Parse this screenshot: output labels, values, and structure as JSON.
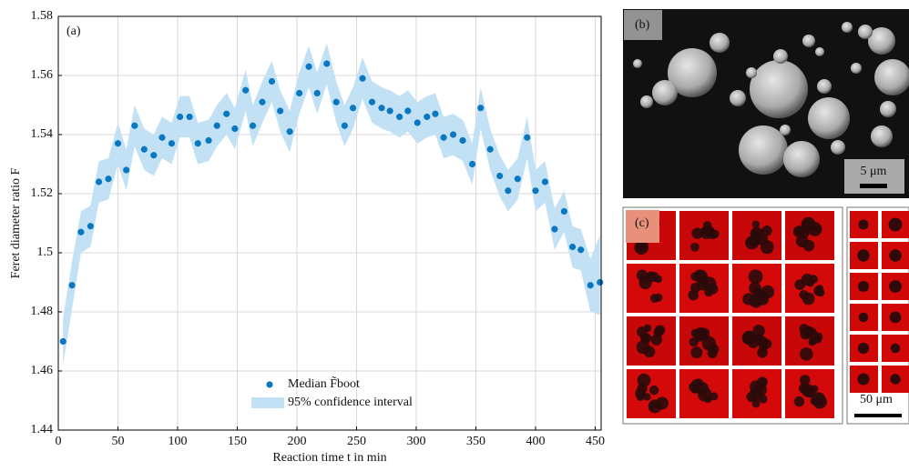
{
  "chart_data": {
    "type": "scatter",
    "panel_label": "(a)",
    "x_label": "Reaction time t in min",
    "y_label": "Feret diameter ratio F",
    "x": [
      4,
      11.5,
      19,
      27,
      34,
      42,
      50,
      57,
      64,
      72,
      80,
      87,
      95,
      102,
      110,
      117,
      126,
      133,
      141,
      148,
      157,
      163,
      171,
      179,
      186,
      194,
      202,
      210,
      217,
      225,
      233,
      240,
      247,
      255,
      263,
      271,
      278,
      286,
      293,
      301,
      309,
      316,
      323,
      331,
      339,
      347,
      354,
      362,
      370,
      377,
      385,
      393,
      400,
      408,
      416,
      424,
      431,
      438,
      446,
      454
    ],
    "series": [
      {
        "name": "Median F̃boot",
        "color": "#0a78c0",
        "values": [
          1.47,
          1.489,
          1.507,
          1.509,
          1.524,
          1.525,
          1.537,
          1.528,
          1.543,
          1.535,
          1.533,
          1.539,
          1.537,
          1.546,
          1.546,
          1.537,
          1.538,
          1.543,
          1.547,
          1.542,
          1.555,
          1.543,
          1.551,
          1.558,
          1.548,
          1.541,
          1.554,
          1.563,
          1.554,
          1.564,
          1.551,
          1.543,
          1.549,
          1.559,
          1.551,
          1.549,
          1.548,
          1.546,
          1.548,
          1.544,
          1.546,
          1.547,
          1.539,
          1.54,
          1.538,
          1.53,
          1.549,
          1.535,
          1.526,
          1.521,
          1.525,
          1.539,
          1.521,
          1.524,
          1.508,
          1.514,
          1.502,
          1.501,
          1.489,
          1.49
        ]
      },
      {
        "name": "95% confidence interval",
        "color": "#c3e1f5",
        "lower": [
          1.462,
          1.481,
          1.5,
          1.502,
          1.517,
          1.518,
          1.53,
          1.521,
          1.536,
          1.528,
          1.526,
          1.532,
          1.53,
          1.539,
          1.539,
          1.53,
          1.531,
          1.536,
          1.54,
          1.535,
          1.548,
          1.536,
          1.544,
          1.551,
          1.541,
          1.534,
          1.547,
          1.556,
          1.547,
          1.557,
          1.544,
          1.536,
          1.542,
          1.552,
          1.544,
          1.542,
          1.541,
          1.539,
          1.541,
          1.537,
          1.539,
          1.54,
          1.532,
          1.533,
          1.531,
          1.523,
          1.542,
          1.528,
          1.519,
          1.514,
          1.518,
          1.532,
          1.514,
          1.517,
          1.501,
          1.507,
          1.495,
          1.494,
          1.48,
          1.479
        ],
        "upper": [
          1.478,
          1.497,
          1.514,
          1.516,
          1.531,
          1.532,
          1.544,
          1.535,
          1.55,
          1.542,
          1.54,
          1.546,
          1.544,
          1.553,
          1.553,
          1.544,
          1.545,
          1.55,
          1.554,
          1.549,
          1.562,
          1.55,
          1.558,
          1.565,
          1.555,
          1.548,
          1.561,
          1.57,
          1.561,
          1.571,
          1.558,
          1.55,
          1.556,
          1.566,
          1.558,
          1.556,
          1.555,
          1.553,
          1.555,
          1.551,
          1.553,
          1.554,
          1.546,
          1.547,
          1.545,
          1.537,
          1.556,
          1.542,
          1.533,
          1.528,
          1.532,
          1.546,
          1.528,
          1.531,
          1.515,
          1.521,
          1.509,
          1.508,
          1.498,
          1.506
        ]
      }
    ],
    "xlim": [
      0,
      455
    ],
    "xticks": [
      0,
      50,
      100,
      150,
      200,
      250,
      300,
      350,
      400,
      450
    ],
    "ylim": [
      1.44,
      1.58
    ],
    "yticks": [
      1.44,
      1.46,
      1.48,
      1.5,
      1.52,
      1.54,
      1.56,
      1.58
    ],
    "grid": true,
    "legend": "lower center"
  },
  "panels": {
    "b": {
      "label": "(b)",
      "scale_bar": "5 μm"
    },
    "c": {
      "label": "(c)",
      "scale_bar": "50 μm"
    }
  }
}
